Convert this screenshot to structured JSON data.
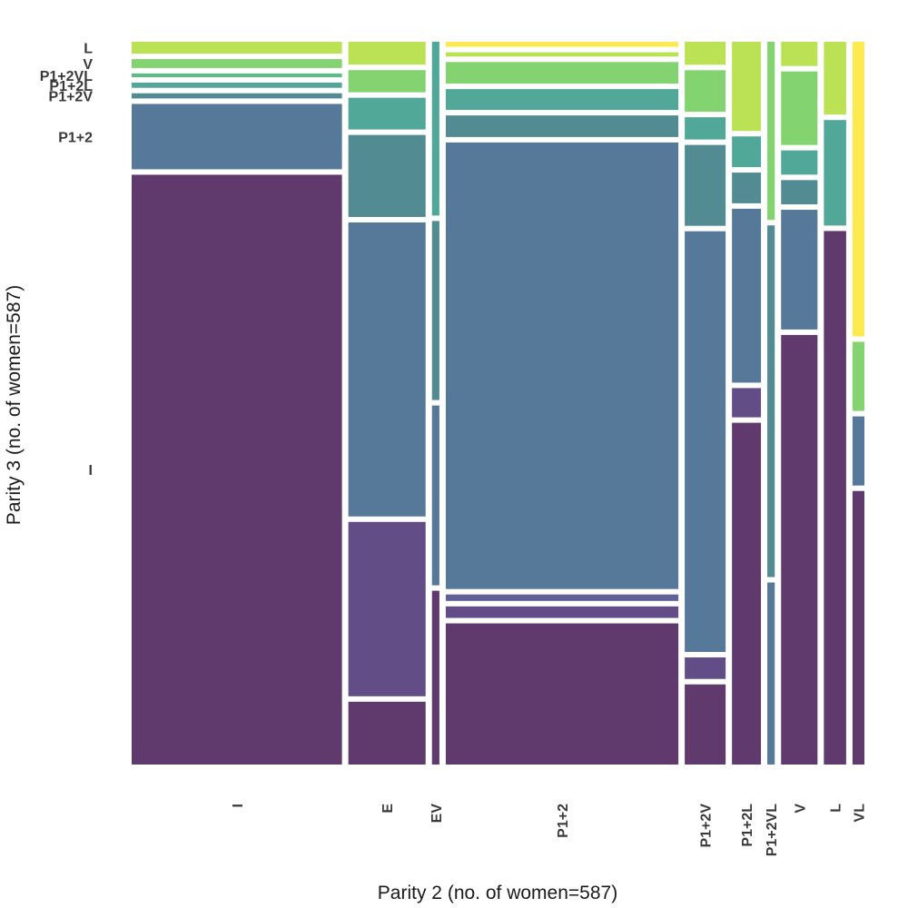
{
  "chart_data": {
    "type": "mosaic",
    "xlabel": "Parity 2 (no. of women=587)",
    "ylabel": "Parity 3 (no. of women=587)",
    "categories": [
      "I",
      "E",
      "EV",
      "P1+2",
      "P1+2V",
      "P1+2L",
      "P1+2VL",
      "V",
      "L",
      "VL"
    ],
    "category_colors": {
      "I": "#5b3468",
      "E": "#5d4783",
      "EV": "#5a5c94",
      "P1+2": "#517597",
      "P1+2V": "#4d8790",
      "P1+2L": "#4ca595",
      "P1+2VL": "#55bb80",
      "V": "#80d26c",
      "L": "#b9e14f",
      "VL": "#fde94a"
    },
    "parity2_shares": {
      "I": 0.283,
      "E": 0.104,
      "EV": 0.01,
      "P1+2": 0.313,
      "P1+2V": 0.055,
      "P1+2L": 0.039,
      "P1+2VL": 0.01,
      "V": 0.049,
      "L": 0.03,
      "VL": 0.016
    },
    "columns": [
      {
        "parity2": "I",
        "parity3": {
          "I": 0.794,
          "E": 0.0,
          "EV": 0.0,
          "P1+2": 0.088,
          "P1+2V": 0.007,
          "P1+2L": 0.007,
          "P1+2VL": 0.005,
          "V": 0.012,
          "L": 0.016,
          "VL": 0.0
        }
      },
      {
        "parity2": "E",
        "parity3": {
          "I": 0.085,
          "E": 0.236,
          "EV": 0.0,
          "P1+2": 0.398,
          "P1+2V": 0.111,
          "P1+2L": 0.043,
          "P1+2VL": 0.0,
          "V": 0.03,
          "L": 0.031,
          "VL": 0.0
        }
      },
      {
        "parity2": "EV",
        "parity3": {
          "I": 0.23,
          "E": 0.0,
          "EV": 0.0,
          "P1+2": 0.238,
          "P1+2V": 0.237,
          "P1+2L": 0.23,
          "P1+2VL": 0.0,
          "V": 0.0,
          "L": 0.0,
          "VL": 0.0
        }
      },
      {
        "parity2": "P1+2",
        "parity3": {
          "I": 0.196,
          "E": 0.016,
          "EV": 0.009,
          "P1+2": 0.62,
          "P1+2V": 0.03,
          "P1+2L": 0.029,
          "P1+2VL": 0.0,
          "V": 0.03,
          "L": 0.006,
          "VL": 0.007
        }
      },
      {
        "parity2": "P1+2V",
        "parity3": {
          "I": 0.108,
          "E": 0.029,
          "EV": 0.0,
          "P1+2": 0.567,
          "P1+2V": 0.109,
          "P1+2L": 0.03,
          "P1+2VL": 0.0,
          "V": 0.056,
          "L": 0.031,
          "VL": 0.0
        }
      },
      {
        "parity2": "P1+2L",
        "parity3": {
          "I": 0.456,
          "E": 0.039,
          "EV": 0.0,
          "P1+2": 0.232,
          "P1+2V": 0.041,
          "P1+2L": 0.041,
          "P1+2VL": 0.0,
          "V": 0.0,
          "L": 0.119,
          "VL": 0.0
        }
      },
      {
        "parity2": "P1+2VL",
        "parity3": {
          "I": 0.0,
          "E": 0.0,
          "EV": 0.0,
          "P1+2": 0.236,
          "P1+2V": 0.456,
          "P1+2L": 0.0,
          "P1+2VL": 0.0,
          "V": 0.231,
          "L": 0.0,
          "VL": 0.0
        }
      },
      {
        "parity2": "V",
        "parity3": {
          "I": 0.567,
          "E": 0.0,
          "EV": 0.0,
          "P1+2": 0.158,
          "P1+2V": 0.032,
          "P1+2L": 0.032,
          "P1+2VL": 0.0,
          "V": 0.097,
          "L": 0.032,
          "VL": 0.0
        }
      },
      {
        "parity2": "L",
        "parity3": {
          "I": 0.718,
          "E": 0.0,
          "EV": 0.0,
          "P1+2": 0.0,
          "P1+2V": 0.0,
          "P1+2L": 0.142,
          "P1+2VL": 0.0,
          "V": 0.0,
          "L": 0.098,
          "VL": 0.0
        }
      },
      {
        "parity2": "VL",
        "parity3": {
          "I": 0.364,
          "E": 0.0,
          "EV": 0.0,
          "P1+2": 0.092,
          "P1+2V": 0.0,
          "P1+2L": 0.0,
          "P1+2VL": 0.0,
          "V": 0.092,
          "L": 0.0,
          "VL": 0.392
        }
      }
    ],
    "legend": "none",
    "grid": false
  }
}
